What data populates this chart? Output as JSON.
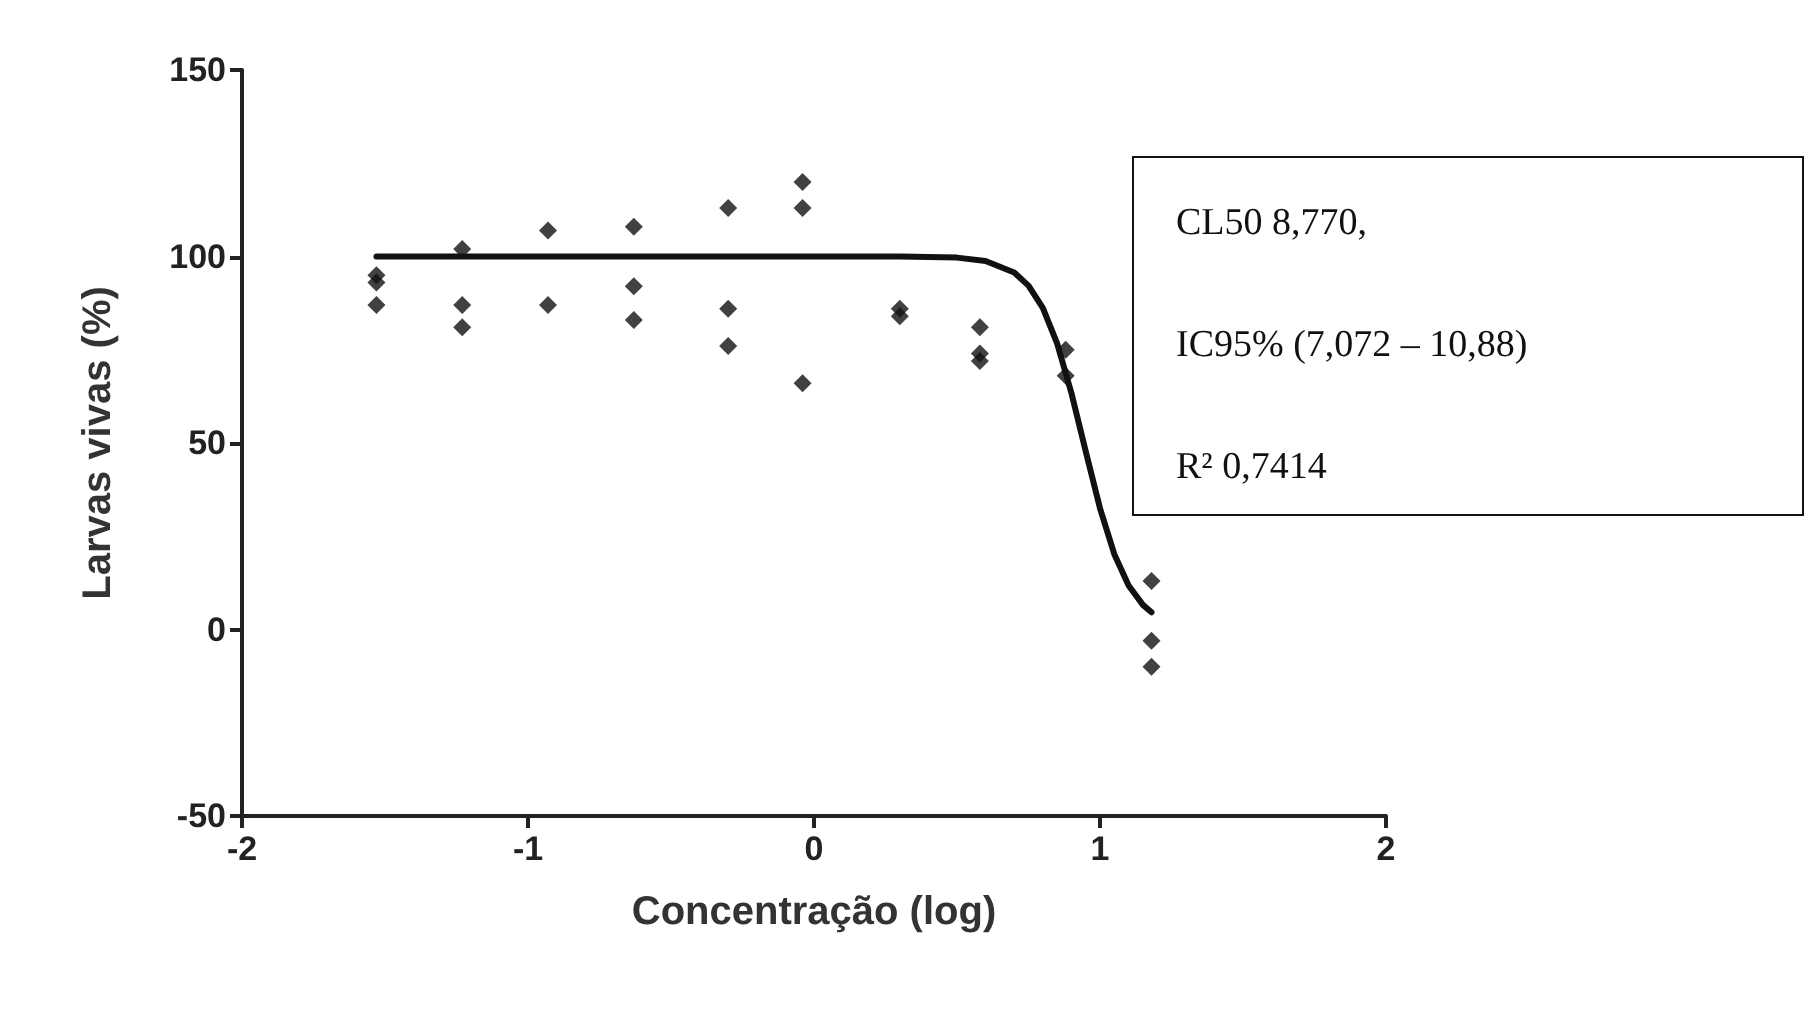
{
  "chart_data": {
    "type": "scatter",
    "xlabel": "Concentração (log)",
    "ylabel": "Larvas vivas (%)",
    "xlim": [
      -2,
      2
    ],
    "xticks": [
      -2,
      -1,
      0,
      1,
      2
    ],
    "ylim": [
      -50,
      150
    ],
    "yticks": [
      -50,
      0,
      50,
      100,
      150
    ],
    "grid": false,
    "marker": "diamond",
    "annotations": [
      "CL50 8,770,",
      "IC95% (7,072 – 10,88)",
      "R² 0,7414"
    ],
    "series": [
      {
        "color": "#111111",
        "x": [
          -1.53,
          -1.53,
          -1.53,
          -1.23,
          -1.23,
          -1.23,
          -0.93,
          -0.93,
          -0.63,
          -0.63,
          -0.63,
          -0.3,
          -0.3,
          -0.3,
          -0.04,
          -0.04,
          -0.04,
          0.3,
          0.3,
          0.58,
          0.58,
          0.58,
          0.88,
          0.88,
          1.18,
          1.18,
          1.18
        ],
        "values": [
          95,
          93,
          87,
          102,
          87,
          81,
          107,
          87,
          108,
          92,
          83,
          113,
          86,
          76,
          120,
          113,
          66,
          86,
          84,
          81,
          74,
          72,
          75,
          68,
          13,
          -3,
          -10
        ]
      },
      {
        "type": "line",
        "color": "#111111",
        "line_style": "solid",
        "marker": "none",
        "x": [
          -1.53,
          0.3,
          0.5,
          0.6,
          0.7,
          0.75,
          0.8,
          0.85,
          0.9,
          0.95,
          1.0,
          1.05,
          1.1,
          1.15,
          1.18
        ],
        "values": [
          100,
          100,
          99.7,
          98.8,
          95.7,
          92.2,
          86.2,
          76.7,
          63.4,
          47.8,
          32.5,
          20.2,
          11.8,
          6.6,
          4.6
        ]
      }
    ]
  }
}
